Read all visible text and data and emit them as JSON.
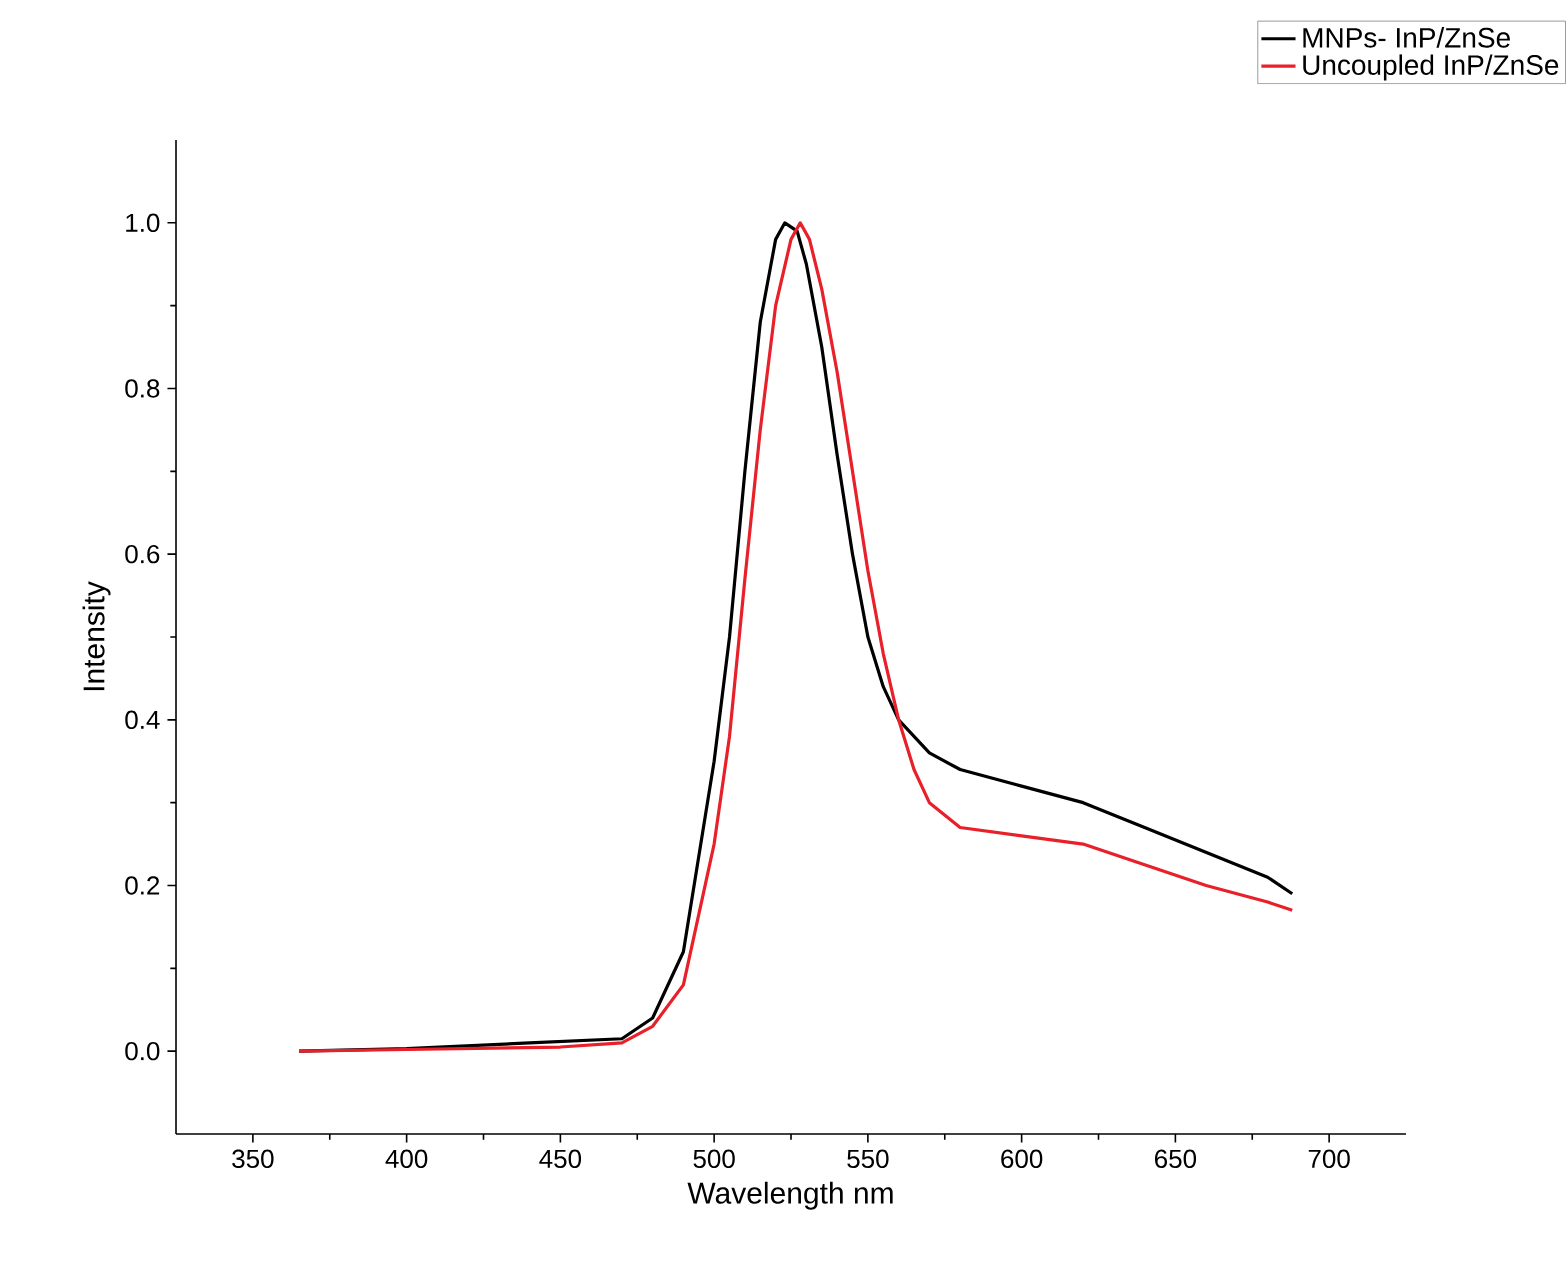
{
  "chart_data": {
    "type": "line",
    "xlabel": "Wavelength nm",
    "ylabel": "Intensity",
    "xlim": [
      325,
      725
    ],
    "ylim": [
      -0.1,
      1.1
    ],
    "xticks": [
      350,
      400,
      450,
      500,
      550,
      600,
      650,
      700
    ],
    "yticks": [
      {
        "value": 0,
        "label": "0.0"
      },
      0.2,
      0.4,
      0.6,
      0.8,
      {
        "value": 1,
        "label": "1.0"
      }
    ],
    "legend": "top right",
    "grid": false,
    "marker": "none",
    "line_style": "solid",
    "series": [
      {
        "name": "MNPs- InP/ZnSe",
        "color": "#000000",
        "x": [
          365,
          400,
          440,
          470,
          480,
          490,
          500,
          505,
          510,
          515,
          520,
          523,
          527,
          530,
          535,
          540,
          545,
          550,
          555,
          560,
          570,
          580,
          600,
          620,
          640,
          660,
          680,
          688
        ],
        "values": [
          0,
          0.003,
          0.01,
          0.015,
          0.04,
          0.12,
          0.35,
          0.5,
          0.7,
          0.88,
          0.98,
          1.0,
          0.99,
          0.95,
          0.85,
          0.72,
          0.6,
          0.5,
          0.44,
          0.4,
          0.36,
          0.34,
          0.32,
          0.3,
          0.27,
          0.24,
          0.21,
          0.19
        ]
      },
      {
        "name": "Uncoupled InP/ZnSe",
        "color": "#e8202a",
        "x": [
          365,
          400,
          450,
          470,
          480,
          490,
          500,
          505,
          510,
          515,
          520,
          525,
          528,
          531,
          535,
          540,
          545,
          550,
          555,
          560,
          565,
          570,
          580,
          600,
          620,
          640,
          660,
          680,
          688
        ],
        "values": [
          0,
          0.002,
          0.005,
          0.01,
          0.03,
          0.08,
          0.25,
          0.38,
          0.57,
          0.75,
          0.9,
          0.98,
          1.0,
          0.98,
          0.92,
          0.82,
          0.7,
          0.58,
          0.48,
          0.4,
          0.34,
          0.3,
          0.27,
          0.26,
          0.25,
          0.225,
          0.2,
          0.18,
          0.17
        ]
      }
    ]
  }
}
